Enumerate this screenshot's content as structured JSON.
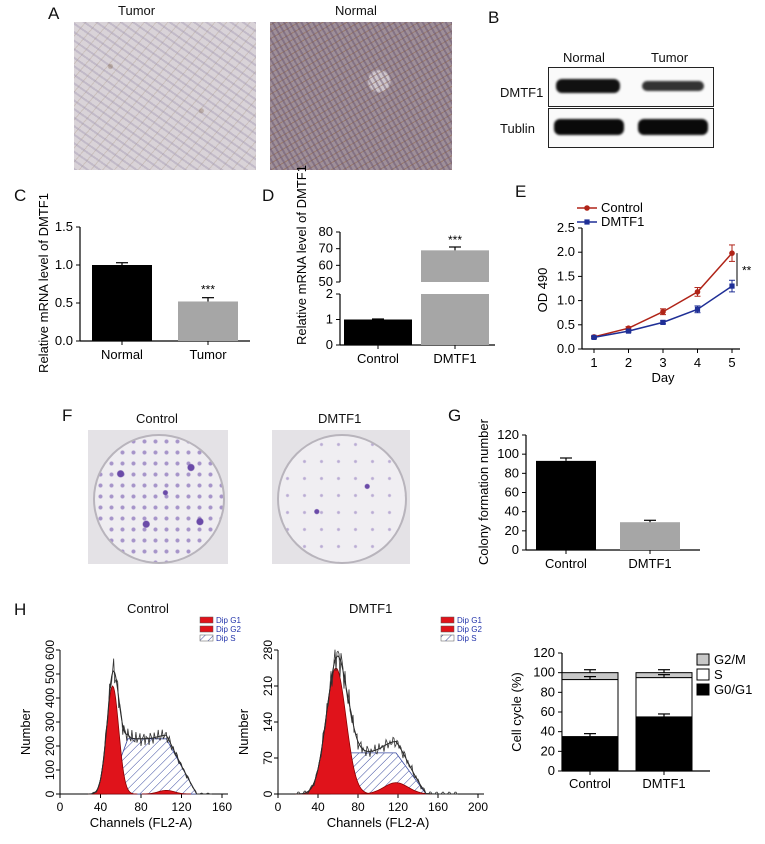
{
  "panels": [
    "A",
    "B",
    "C",
    "D",
    "E",
    "F",
    "G",
    "H"
  ],
  "ihc": {
    "tumor": "Tumor",
    "normal": "Normal"
  },
  "blot": {
    "col1": "Normal",
    "col2": "Tumor",
    "row1": "DMTF1",
    "row2": "Tublin"
  },
  "colony": {
    "left": "Control",
    "right": "DMTF1"
  },
  "flow": {
    "left_title": "Control",
    "right_title": "DMTF1",
    "legend": [
      "Dip G1",
      "Dip G2",
      "Dip S"
    ],
    "ylabel": "Number",
    "xlabel": "Channels (FL2-A)"
  },
  "colors": {
    "black_bar": "#000000",
    "grey_bar": "#a6a6a6",
    "control_line": "#b02418",
    "dmtf1_line": "#1f2f96",
    "g1_fill": "#e0131b",
    "legend_blue": "#2233aa"
  },
  "chart_data": [
    {
      "id": "C",
      "type": "bar",
      "categories": [
        "Normal",
        "Tumor"
      ],
      "values": [
        1.0,
        0.52
      ],
      "errors": [
        0.03,
        0.05
      ],
      "ylabel": "Relative mRNA level of DMTF1",
      "ylim": [
        0,
        1.5
      ],
      "yticks": [
        "0.0",
        "0.5",
        "1.0",
        "1.5"
      ],
      "significance": "***"
    },
    {
      "id": "D",
      "type": "bar",
      "categories": [
        "Control",
        "DMTF1"
      ],
      "values": [
        1.0,
        69
      ],
      "errors": [
        0.02,
        2
      ],
      "ylabel": "Relative mRNA level of DMTF1",
      "yticks": [
        "0",
        "1",
        "2",
        "50",
        "60",
        "70",
        "80"
      ],
      "axis_break": [
        2,
        50
      ],
      "significance": "***"
    },
    {
      "id": "E",
      "type": "line",
      "x": [
        1,
        2,
        3,
        4,
        5
      ],
      "series": [
        {
          "name": "Control",
          "values": [
            0.25,
            0.43,
            0.77,
            1.18,
            1.98
          ],
          "errors": [
            0.02,
            0.03,
            0.06,
            0.09,
            0.17
          ]
        },
        {
          "name": "DMTF1",
          "values": [
            0.24,
            0.37,
            0.55,
            0.82,
            1.3
          ],
          "errors": [
            0.02,
            0.02,
            0.03,
            0.07,
            0.12
          ]
        }
      ],
      "xlabel": "Day",
      "ylabel": "OD 490",
      "ylim": [
        0,
        2.5
      ],
      "yticks": [
        "0.0",
        "0.5",
        "1.0",
        "1.5",
        "2.0",
        "2.5"
      ],
      "xticks": [
        "1",
        "2",
        "3",
        "4",
        "5"
      ],
      "significance": "**",
      "legend": "top-left"
    },
    {
      "id": "G",
      "type": "bar",
      "categories": [
        "Control",
        "DMTF1"
      ],
      "values": [
        93,
        29
      ],
      "errors": [
        3,
        2
      ],
      "ylabel": "Colony formation number",
      "ylim": [
        0,
        120
      ],
      "yticks": [
        "0",
        "20",
        "40",
        "60",
        "80",
        "100",
        "120"
      ]
    },
    {
      "id": "H-control",
      "type": "area",
      "ylabel": "Number",
      "xlabel": "Channels (FL2-A)",
      "xlim": [
        0,
        160
      ],
      "xticks": [
        "0",
        "40",
        "80",
        "120",
        "160"
      ],
      "ylim": [
        0,
        600
      ],
      "yticks": [
        "0",
        "100",
        "200",
        "300",
        "400",
        "500",
        "600"
      ]
    },
    {
      "id": "H-dmtf1",
      "type": "area",
      "ylabel": "Number",
      "xlabel": "Channels (FL2-A)",
      "xlim": [
        0,
        200
      ],
      "xticks": [
        "0",
        "40",
        "80",
        "120",
        "160",
        "200"
      ],
      "ylim": [
        0,
        280
      ],
      "yticks": [
        "0",
        "70",
        "140",
        "210",
        "280"
      ]
    },
    {
      "id": "H-cycle",
      "type": "bar",
      "categories": [
        "Control",
        "DMTF1"
      ],
      "series": [
        {
          "name": "G0/G1",
          "values": [
            35,
            55
          ]
        },
        {
          "name": "S",
          "values": [
            58,
            40
          ]
        },
        {
          "name": "G2/M",
          "values": [
            7,
            5
          ]
        }
      ],
      "ylabel": "Cell cycle (%)",
      "ylim": [
        0,
        120
      ],
      "yticks": [
        "0",
        "20",
        "40",
        "60",
        "80",
        "100",
        "120"
      ],
      "legend": "top-right"
    }
  ]
}
